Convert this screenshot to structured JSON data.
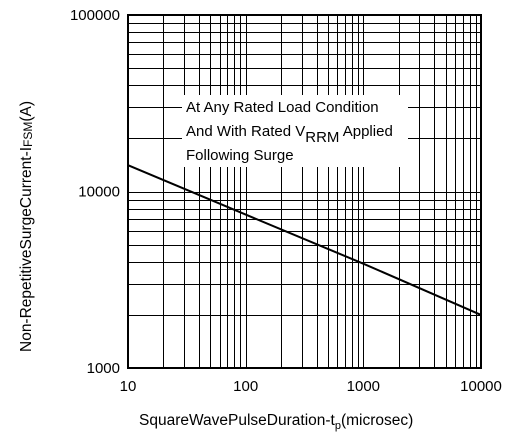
{
  "chart_data": {
    "type": "line",
    "x_scale": "log",
    "y_scale": "log",
    "xlim": [
      10,
      10000
    ],
    "ylim": [
      1000,
      100000
    ],
    "grid": true,
    "x_ticks": [
      "10",
      "100",
      "1000",
      "10000"
    ],
    "y_ticks": [
      "1000",
      "10000",
      "100000"
    ],
    "xlabel": {
      "main": "SquareWavePulseDuration-t",
      "subscript": "p",
      "suffix": "(microsec)"
    },
    "ylabel": {
      "main": "Non-RepetitiveSurgeCurrent-I",
      "subscript": "FSM",
      "suffix": "(A)"
    },
    "annotation": {
      "line1": "At Any Rated Load Condition",
      "line2_prefix": "And With Rated V",
      "line2_subscript": "RRM",
      "line2_suffix": " Applied",
      "line3": "Following Surge"
    },
    "series": [
      {
        "x": [
          10,
          100,
          1000,
          10000
        ],
        "y": [
          14100,
          7400,
          3900,
          2000
        ]
      }
    ]
  }
}
